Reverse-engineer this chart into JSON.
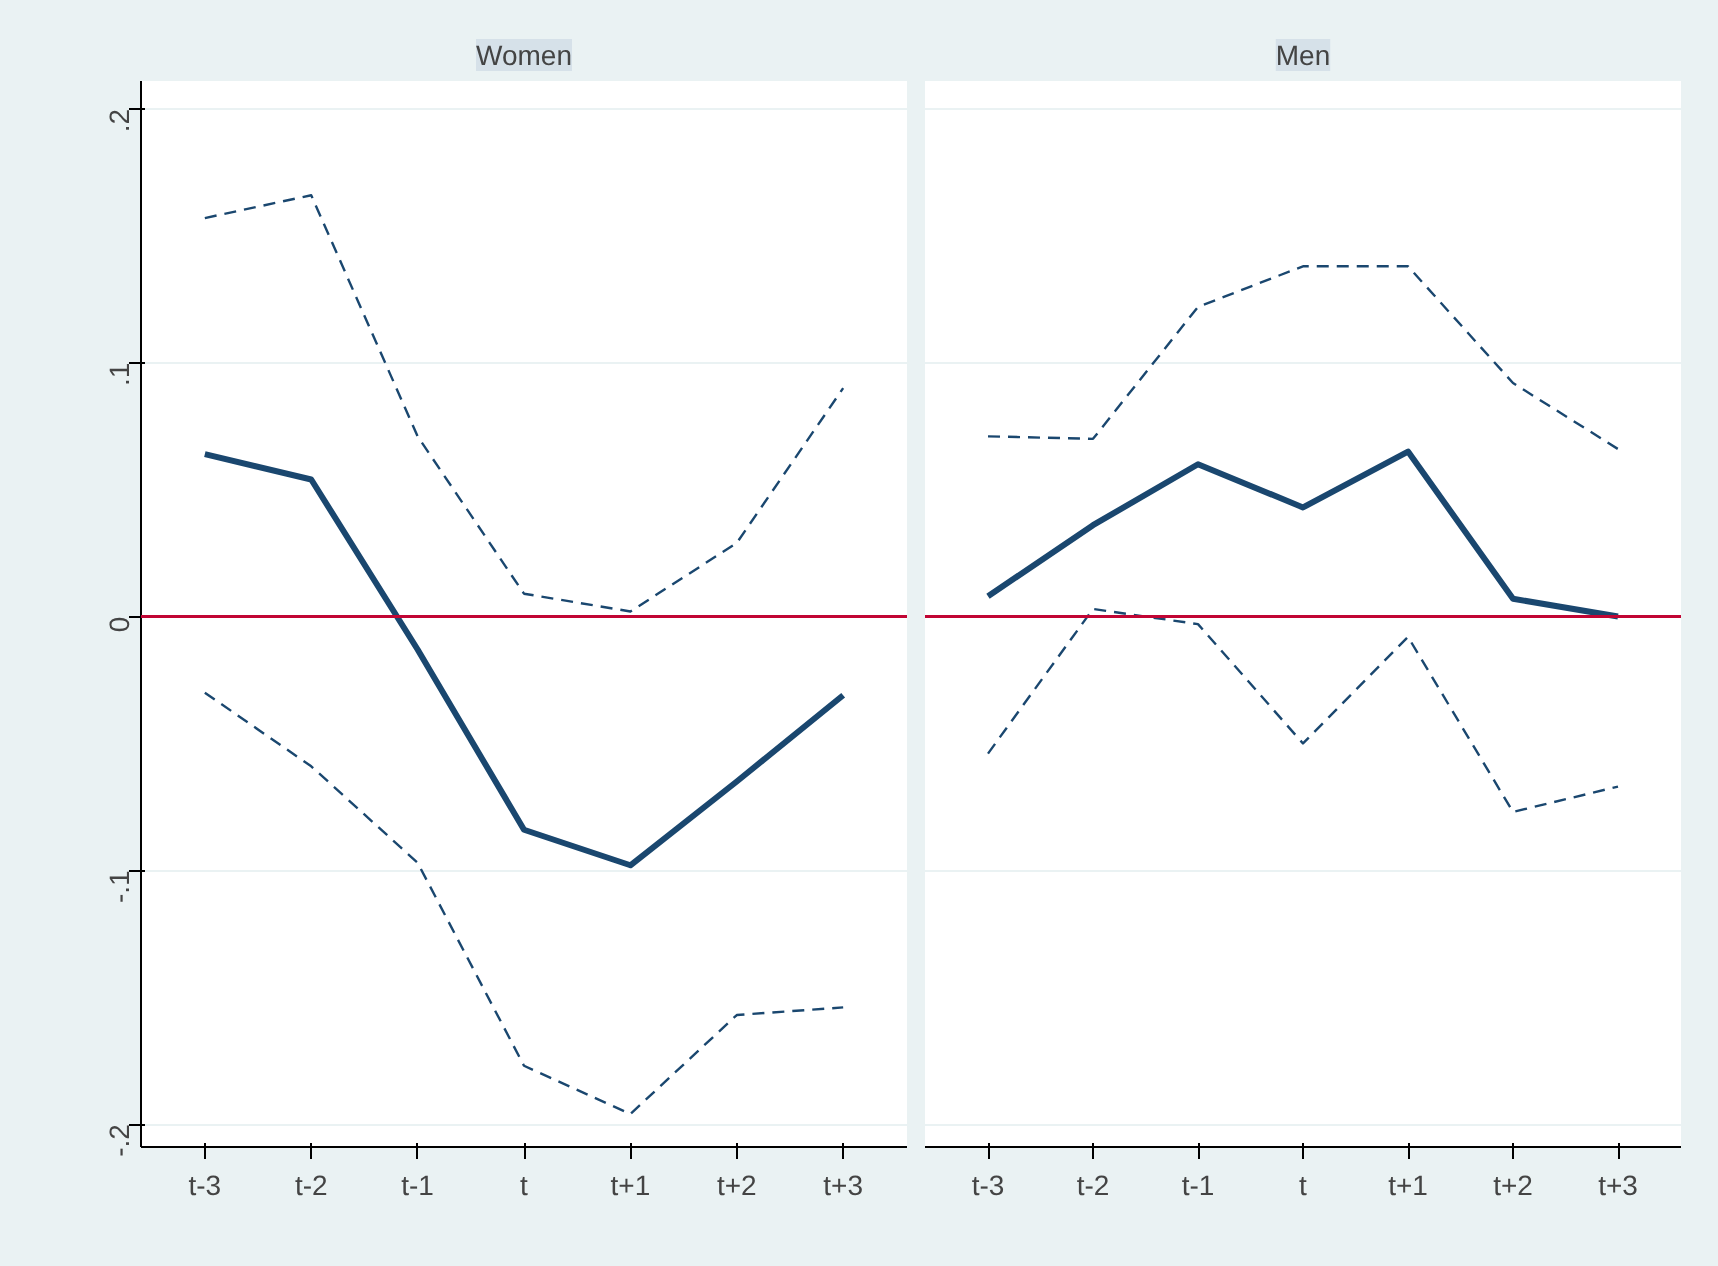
{
  "chart_data": [
    {
      "type": "line",
      "title": "Women",
      "categories": [
        "t-3",
        "t-2",
        "t-1",
        "t",
        "t+1",
        "t+2",
        "t+3"
      ],
      "ylim": [
        -0.209,
        0.211
      ],
      "yticks": [
        {
          "value": -0.2,
          "label": "-.2"
        },
        {
          "value": -0.1,
          "label": "-.1"
        },
        0,
        {
          "value": 0.1,
          "label": ".1"
        },
        {
          "value": 0.2,
          "label": ".2"
        }
      ],
      "grid": "y",
      "marker": "none",
      "ref_lines": [
        {
          "axis": "y",
          "value": 0,
          "color": "#c10534"
        }
      ],
      "series": [
        {
          "color": "#1a476f",
          "line_style": "solid",
          "values": [
            0.064,
            0.054,
            -0.013,
            -0.084,
            -0.098,
            -0.065,
            -0.031
          ]
        },
        {
          "color": "#1a476f",
          "line_style": "dashed",
          "values": [
            0.157,
            0.166,
            0.071,
            0.009,
            0.002,
            0.029,
            0.09
          ]
        },
        {
          "color": "#1a476f",
          "line_style": "dashed",
          "values": [
            -0.03,
            -0.059,
            -0.097,
            -0.177,
            -0.196,
            -0.157,
            -0.154
          ]
        }
      ]
    },
    {
      "type": "line",
      "title": "Men",
      "categories": [
        "t-3",
        "t-2",
        "t-1",
        "t",
        "t+1",
        "t+2",
        "t+3"
      ],
      "ylim": [
        -0.209,
        0.211
      ],
      "yticks": [
        -0.2,
        -0.1,
        0,
        0.1,
        0.2
      ],
      "grid": "y",
      "marker": "none",
      "tick_labels": "x",
      "ref_lines": [
        {
          "axis": "y",
          "value": 0,
          "color": "#c10534"
        }
      ],
      "series": [
        {
          "color": "#1a476f",
          "line_style": "solid",
          "values": [
            0.008,
            0.036,
            0.06,
            0.043,
            0.065,
            0.007,
            0.0
          ]
        },
        {
          "color": "#1a476f",
          "line_style": "dashed",
          "values": [
            0.071,
            0.07,
            0.122,
            0.138,
            0.138,
            0.092,
            0.066
          ]
        },
        {
          "color": "#1a476f",
          "line_style": "dashed",
          "values": [
            -0.054,
            0.003,
            -0.003,
            -0.05,
            -0.008,
            -0.077,
            -0.067
          ]
        }
      ]
    }
  ]
}
